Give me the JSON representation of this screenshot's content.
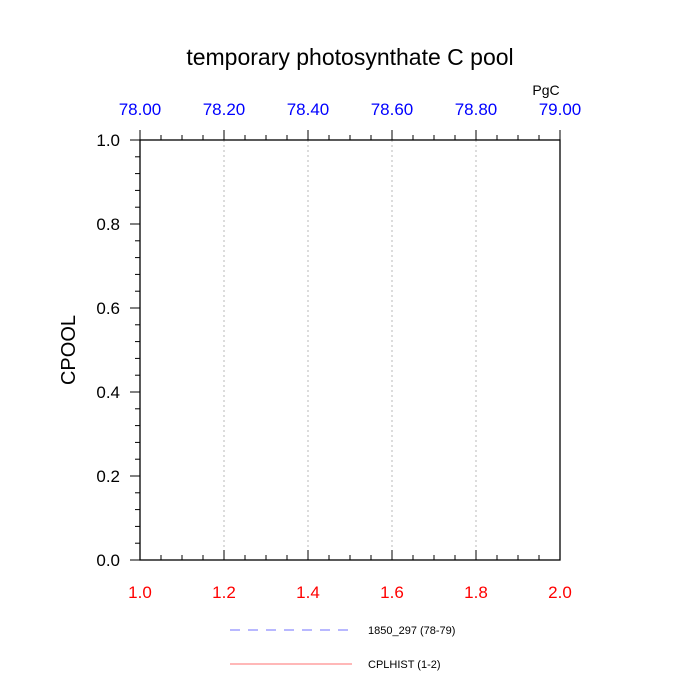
{
  "chart_data": {
    "type": "line",
    "title": "temporary photosynthate C pool",
    "ylabel": "CPOOL",
    "ylim": [
      0,
      1
    ],
    "y_ticks": [
      "0.0",
      "0.2",
      "0.4",
      "0.6",
      "0.8",
      "1.0"
    ],
    "x_bottom": {
      "range": [
        1,
        2
      ],
      "ticks": [
        "1.0",
        "1.2",
        "1.4",
        "1.6",
        "1.8",
        "2.0"
      ],
      "color": "#ff0000"
    },
    "x_top": {
      "range": [
        78,
        79
      ],
      "ticks": [
        "78.00",
        "78.20",
        "78.40",
        "78.60",
        "78.80",
        "79.00"
      ],
      "unit": "PgC",
      "color": "#0000ff"
    },
    "grid": "vertical dotted",
    "series": [
      {
        "name": "1850_297 (78-79)",
        "color": "#0000ff",
        "dash": "dashed",
        "values": []
      },
      {
        "name": "CPLHIST (1-2)",
        "color": "#ff0000",
        "dash": "solid",
        "values": []
      }
    ]
  }
}
